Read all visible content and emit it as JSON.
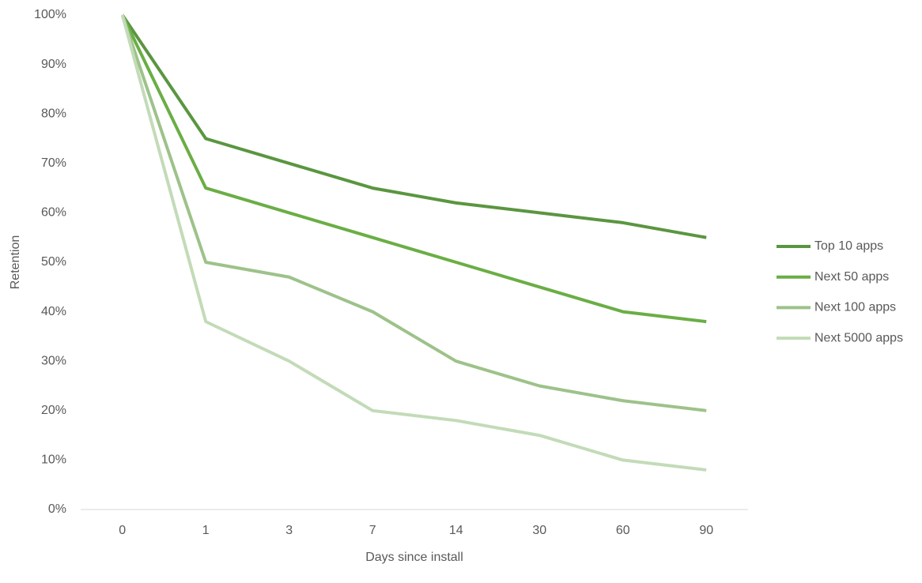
{
  "chart_data": {
    "type": "line",
    "x_label": "Days since install",
    "y_label": "Retention",
    "categories": [
      "0",
      "1",
      "3",
      "7",
      "14",
      "30",
      "60",
      "90"
    ],
    "series": [
      {
        "name": "Top 10 apps",
        "color": "#5a9640",
        "values": [
          100,
          75,
          70,
          65,
          62,
          60,
          58,
          55
        ]
      },
      {
        "name": "Next 50 apps",
        "color": "#6aae45",
        "values": [
          100,
          65,
          60,
          55,
          50,
          45,
          40,
          38
        ]
      },
      {
        "name": "Next 100 apps",
        "color": "#9dc28a",
        "values": [
          100,
          50,
          47,
          40,
          30,
          25,
          22,
          20
        ]
      },
      {
        "name": "Next 5000 apps",
        "color": "#c3dbb8",
        "values": [
          100,
          38,
          30,
          20,
          18,
          15,
          10,
          8
        ]
      }
    ],
    "ylim": [
      0,
      100
    ],
    "yticks": [
      {
        "value": 0,
        "label": "0%"
      },
      {
        "value": 10,
        "label": "10%"
      },
      {
        "value": 20,
        "label": "20%"
      },
      {
        "value": 30,
        "label": "30%"
      },
      {
        "value": 40,
        "label": "40%"
      },
      {
        "value": 50,
        "label": "50%"
      },
      {
        "value": 60,
        "label": "60%"
      },
      {
        "value": 70,
        "label": "70%"
      },
      {
        "value": 80,
        "label": "80%"
      },
      {
        "value": 90,
        "label": "90%"
      },
      {
        "value": 100,
        "label": "100%"
      }
    ],
    "grid": false,
    "legend": "right"
  }
}
